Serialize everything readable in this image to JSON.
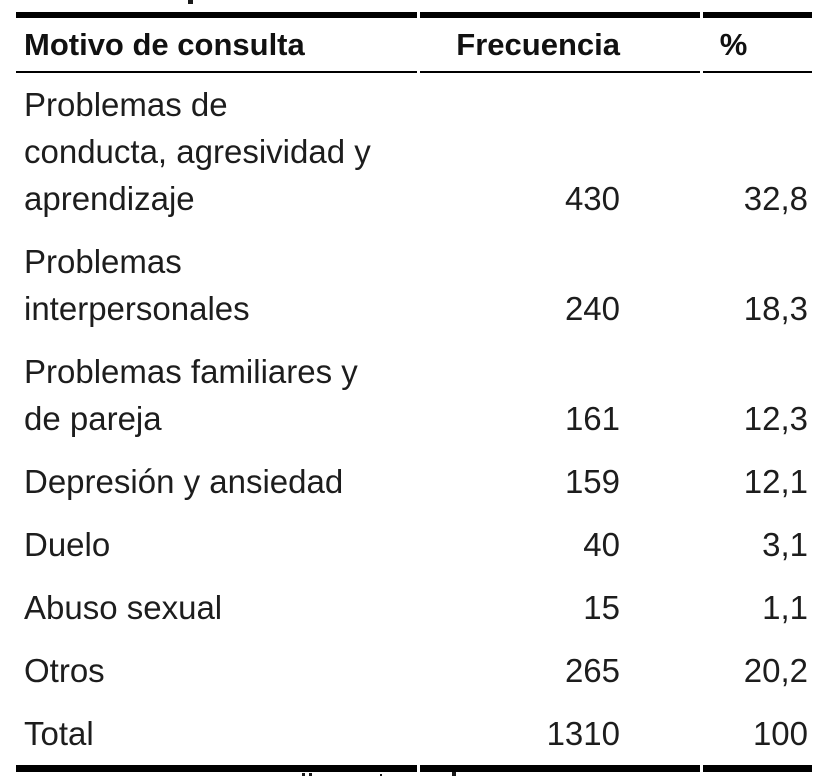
{
  "document": {
    "colors": {
      "text": "#1d1d1d",
      "rule": "#000000",
      "background": "#ffffff"
    },
    "table": {
      "headers": {
        "motivo": "Motivo de consulta",
        "frecuencia": "Frecuencia",
        "pct": "%"
      },
      "rows": [
        {
          "motivo": "Problemas de\nconducta, agresividad y\naprendizaje",
          "frecuencia": "430",
          "pct": "32,8"
        },
        {
          "motivo": "Problemas\ninterpersonales",
          "frecuencia": "240",
          "pct": "18,3"
        },
        {
          "motivo": "Problemas familiares y\nde pareja",
          "frecuencia": "161",
          "pct": "12,3"
        },
        {
          "motivo": "Depresión y ansiedad",
          "frecuencia": "159",
          "pct": "12,1"
        },
        {
          "motivo": "Duelo",
          "frecuencia": "40",
          "pct": "3,1"
        },
        {
          "motivo": "Abuso sexual",
          "frecuencia": "15",
          "pct": "1,1"
        },
        {
          "motivo": "Otros",
          "frecuencia": "265",
          "pct": "20,2"
        }
      ],
      "total": {
        "motivo": "Total",
        "frecuencia": "1310",
        "pct": "100"
      }
    }
  }
}
